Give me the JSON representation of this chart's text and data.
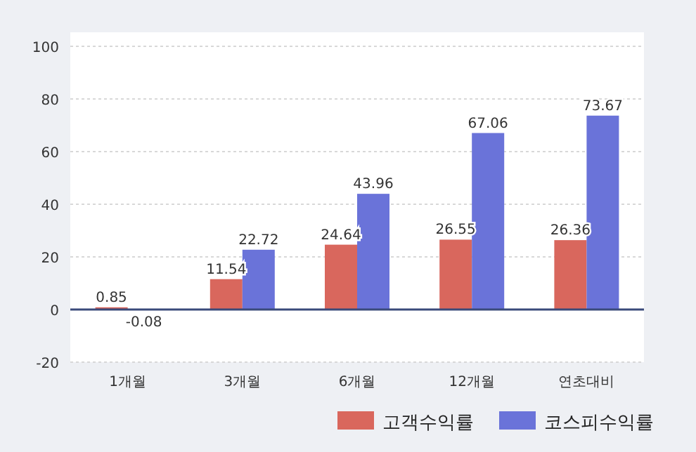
{
  "chart_data": {
    "type": "bar",
    "categories": [
      "1개월",
      "3개월",
      "6개월",
      "12개월",
      "연초대비"
    ],
    "series": [
      {
        "name": "고객수익률",
        "color": "#d9675d",
        "values": [
          0.85,
          11.54,
          24.64,
          26.55,
          26.36
        ]
      },
      {
        "name": "코스피수익률",
        "color": "#6a73d9",
        "values": [
          -0.08,
          22.72,
          43.96,
          67.06,
          73.67
        ]
      }
    ],
    "ylim": [
      -20,
      100
    ],
    "yticks": [
      -20,
      0,
      20,
      40,
      60,
      80,
      100
    ],
    "grid": "y",
    "ref_lines": [
      {
        "axis": "y",
        "value": 0,
        "color": "#3a4a7a"
      }
    ],
    "legend": "bottom right",
    "data_labels": true
  }
}
